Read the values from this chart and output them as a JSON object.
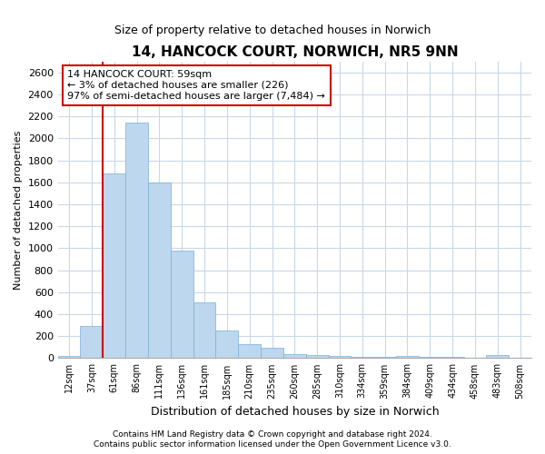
{
  "title": "14, HANCOCK COURT, NORWICH, NR5 9NN",
  "subtitle": "Size of property relative to detached houses in Norwich",
  "xlabel": "Distribution of detached houses by size in Norwich",
  "ylabel": "Number of detached properties",
  "bar_color": "#bdd7ee",
  "bar_edge_color": "#7ab0d4",
  "property_line_color": "#cc0000",
  "annotation_box_color": "#cc0000",
  "background_color": "#ffffff",
  "grid_color": "#c8d8e8",
  "categories": [
    "12sqm",
    "37sqm",
    "61sqm",
    "86sqm",
    "111sqm",
    "136sqm",
    "161sqm",
    "185sqm",
    "210sqm",
    "235sqm",
    "260sqm",
    "285sqm",
    "310sqm",
    "334sqm",
    "359sqm",
    "384sqm",
    "409sqm",
    "434sqm",
    "458sqm",
    "483sqm",
    "508sqm"
  ],
  "values": [
    20,
    295,
    1680,
    2140,
    1600,
    975,
    505,
    250,
    128,
    95,
    38,
    28,
    18,
    15,
    12,
    18,
    12,
    8,
    5,
    25,
    5
  ],
  "property_bar_index": 2,
  "ylim": [
    0,
    2700
  ],
  "yticks": [
    0,
    200,
    400,
    600,
    800,
    1000,
    1200,
    1400,
    1600,
    1800,
    2000,
    2200,
    2400,
    2600
  ],
  "annotation_text": "14 HANCOCK COURT: 59sqm\n← 3% of detached houses are smaller (226)\n97% of semi-detached houses are larger (7,484) →",
  "footer_line1": "Contains HM Land Registry data © Crown copyright and database right 2024.",
  "footer_line2": "Contains public sector information licensed under the Open Government Licence v3.0."
}
